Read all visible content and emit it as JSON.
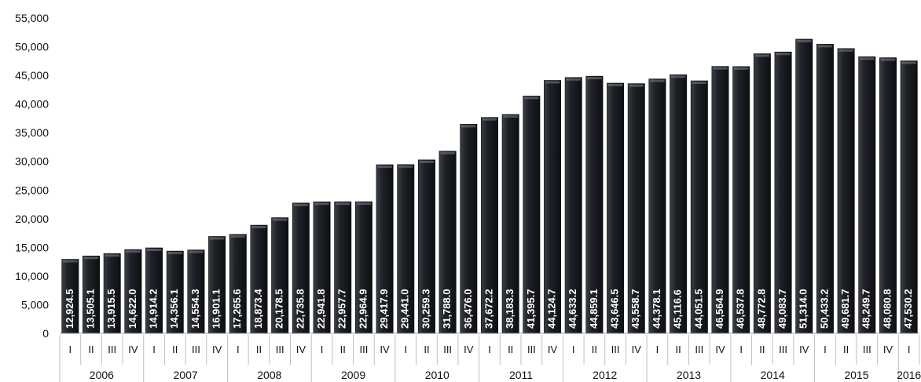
{
  "chart_data": {
    "type": "bar",
    "title": "",
    "xlabel": "",
    "ylabel": "",
    "ylim": [
      0,
      55000
    ],
    "yticks": [
      "0",
      "5,000",
      "10,000",
      "15,000",
      "20,000",
      "25,000",
      "30,000",
      "35,000",
      "40,000",
      "45,000",
      "50,000",
      "55,000"
    ],
    "grid": false,
    "legend": "none",
    "bar_color": "#1e2127",
    "categories": [
      {
        "year": "2006",
        "quarter": "I"
      },
      {
        "year": "2006",
        "quarter": "II"
      },
      {
        "year": "2006",
        "quarter": "III"
      },
      {
        "year": "2006",
        "quarter": "IV"
      },
      {
        "year": "2007",
        "quarter": "I"
      },
      {
        "year": "2007",
        "quarter": "II"
      },
      {
        "year": "2007",
        "quarter": "III"
      },
      {
        "year": "2007",
        "quarter": "IV"
      },
      {
        "year": "2008",
        "quarter": "I"
      },
      {
        "year": "2008",
        "quarter": "II"
      },
      {
        "year": "2008",
        "quarter": "III"
      },
      {
        "year": "2008",
        "quarter": "IV"
      },
      {
        "year": "2009",
        "quarter": "I"
      },
      {
        "year": "2009",
        "quarter": "II"
      },
      {
        "year": "2009",
        "quarter": "III"
      },
      {
        "year": "2009",
        "quarter": "IV"
      },
      {
        "year": "2010",
        "quarter": "I"
      },
      {
        "year": "2010",
        "quarter": "II"
      },
      {
        "year": "2010",
        "quarter": "III"
      },
      {
        "year": "2010",
        "quarter": "IV"
      },
      {
        "year": "2011",
        "quarter": "I"
      },
      {
        "year": "2011",
        "quarter": "II"
      },
      {
        "year": "2011",
        "quarter": "III"
      },
      {
        "year": "2011",
        "quarter": "IV"
      },
      {
        "year": "2012",
        "quarter": "I"
      },
      {
        "year": "2012",
        "quarter": "II"
      },
      {
        "year": "2012",
        "quarter": "III"
      },
      {
        "year": "2012",
        "quarter": "IV"
      },
      {
        "year": "2013",
        "quarter": "I"
      },
      {
        "year": "2013",
        "quarter": "II"
      },
      {
        "year": "2013",
        "quarter": "III"
      },
      {
        "year": "2013",
        "quarter": "IV"
      },
      {
        "year": "2014",
        "quarter": "I"
      },
      {
        "year": "2014",
        "quarter": "II"
      },
      {
        "year": "2014",
        "quarter": "III"
      },
      {
        "year": "2014",
        "quarter": "IV"
      },
      {
        "year": "2015",
        "quarter": "I"
      },
      {
        "year": "2015",
        "quarter": "II"
      },
      {
        "year": "2015",
        "quarter": "III"
      },
      {
        "year": "2015",
        "quarter": "IV"
      },
      {
        "year": "2016",
        "quarter": "I"
      }
    ],
    "years": [
      "2006",
      "2007",
      "2008",
      "2009",
      "2010",
      "2011",
      "2012",
      "2013",
      "2014",
      "2015",
      "2016"
    ],
    "values": [
      12924.5,
      13505.1,
      13915.5,
      14622.0,
      14914.2,
      14356.1,
      14554.3,
      16901.1,
      17265.6,
      18873.4,
      20178.5,
      22735.8,
      22941.8,
      22957.7,
      22964.9,
      29417.9,
      29441.0,
      30259.3,
      31788.0,
      36476.0,
      37672.2,
      38183.3,
      41395.7,
      44124.7,
      44633.2,
      44859.1,
      43646.5,
      43558.7,
      44378.1,
      45116.6,
      44051.5,
      46564.9,
      46537.8,
      48772.8,
      49083.7,
      51314.0,
      50433.2,
      49681.7,
      48249.7,
      48080.8,
      47530.2
    ],
    "value_labels": [
      "12,924.5",
      "13,505.1",
      "13,915.5",
      "14,622.0",
      "14,914.2",
      "14,356.1",
      "14,554.3",
      "16,901.1",
      "17,265.6",
      "18,873.4",
      "20,178.5",
      "22,735.8",
      "22,941.8",
      "22,957.7",
      "22,964.9",
      "29,417.9",
      "29,441.0",
      "30,259.3",
      "31,788.0",
      "36,476.0",
      "37,672.2",
      "38,183.3",
      "41,395.7",
      "44,124.7",
      "44,633.2",
      "44,859.1",
      "43,646.5",
      "43,558.7",
      "44,378.1",
      "45,116.6",
      "44,051.5",
      "46,564.9",
      "46,537.8",
      "48,772.8",
      "49,083.7",
      "51,314.0",
      "50,433.2",
      "49,681.7",
      "48,249.7",
      "48,080.8",
      "47,530.2"
    ]
  }
}
